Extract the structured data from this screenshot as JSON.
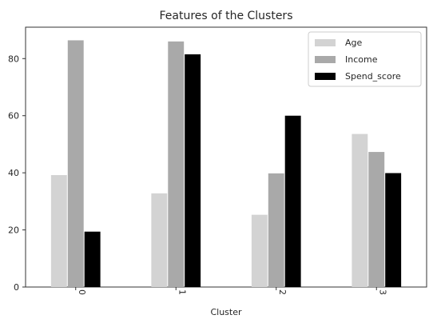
{
  "chart_data": {
    "type": "bar",
    "title": "Features of the Clusters",
    "xlabel": "Cluster",
    "ylabel": "",
    "categories": [
      "0",
      "1",
      "2",
      "3"
    ],
    "series": [
      {
        "name": "Age",
        "color": "#d3d3d3",
        "values": [
          39.2,
          32.8,
          25.3,
          53.6
        ]
      },
      {
        "name": "Income",
        "color": "#a9a9a9",
        "values": [
          86.4,
          86.0,
          39.8,
          47.3
        ]
      },
      {
        "name": "Spend_score",
        "color": "#000000",
        "values": [
          19.4,
          81.5,
          60.0,
          39.9
        ]
      }
    ],
    "ylim": [
      0,
      91
    ],
    "yticks": [
      0,
      20,
      40,
      60,
      80
    ],
    "grid": false,
    "legend_position": "top-right",
    "xtick_rotation": 90
  }
}
